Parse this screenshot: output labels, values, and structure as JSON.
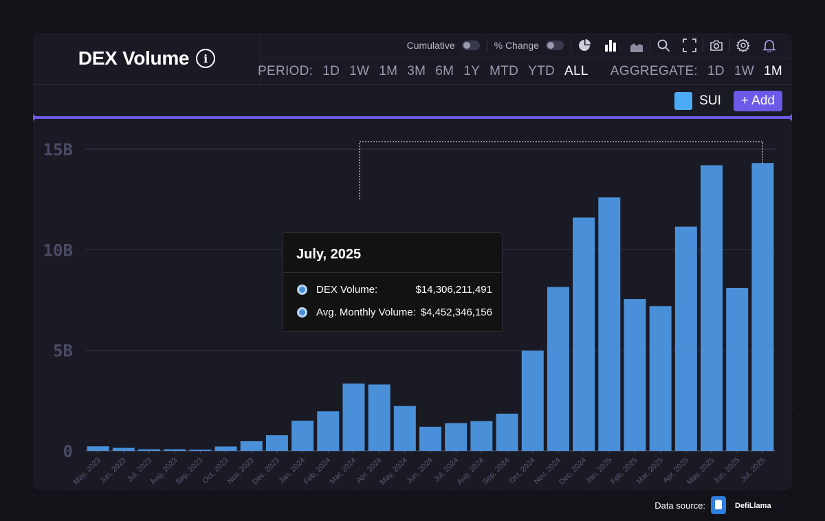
{
  "header": {
    "title": "DEX Volume",
    "toolbar": {
      "cumulative_label": "Cumulative",
      "pct_change_label": "% Change",
      "icons": [
        "pie-chart-icon",
        "bar-chart-icon",
        "area-chart-icon",
        "search-icon",
        "fullscreen-icon",
        "camera-icon",
        "gear-icon",
        "bell-icon"
      ]
    },
    "period": {
      "label": "PERIOD:",
      "options": [
        "1D",
        "1W",
        "1M",
        "3M",
        "6M",
        "1Y",
        "MTD",
        "YTD",
        "ALL"
      ],
      "active": "ALL"
    },
    "aggregate": {
      "label": "AGGREGATE:",
      "options": [
        "1D",
        "1W",
        "1M"
      ],
      "active": "1M"
    }
  },
  "legend": {
    "label": "SUI",
    "color": "#4dabf5",
    "add_label": "+ Add"
  },
  "tooltip": {
    "title": "July, 2025",
    "rows": [
      {
        "label": "DEX Volume:",
        "value": "$14,306,211,491"
      },
      {
        "label": "Avg. Monthly Volume:",
        "value": "$4,452,346,156"
      }
    ]
  },
  "source": {
    "label": "Data source:",
    "brand": "DefiLlama"
  },
  "chart_data": {
    "type": "bar",
    "title": "DEX Volume",
    "categories": [
      "May, 2023",
      "Jun, 2023",
      "Jul, 2023",
      "Aug, 2023",
      "Sep, 2023",
      "Oct, 2023",
      "Nov, 2023",
      "Dec, 2023",
      "Jan, 2024",
      "Feb, 2024",
      "Mar, 2024",
      "Apr, 2024",
      "May, 2024",
      "Jun, 2024",
      "Jul, 2024",
      "Aug, 2024",
      "Sep, 2024",
      "Oct, 2024",
      "Nov, 2024",
      "Dec, 2024",
      "Jan, 2025",
      "Feb, 2025",
      "Mar, 2025",
      "Apr, 2025",
      "May, 2025",
      "Jun, 2025",
      "Jul, 2025"
    ],
    "series": [
      {
        "name": "SUI",
        "values": [
          0.23,
          0.15,
          0.08,
          0.08,
          0.06,
          0.22,
          0.48,
          0.78,
          1.5,
          1.97,
          3.35,
          3.3,
          2.23,
          1.2,
          1.38,
          1.48,
          1.85,
          4.98,
          8.15,
          11.6,
          12.6,
          7.55,
          7.2,
          11.15,
          14.2,
          8.1,
          14.31
        ]
      }
    ],
    "y_ticks": [
      "0",
      "5B",
      "10B",
      "15B"
    ],
    "y_tick_values": [
      0,
      5,
      10,
      15
    ],
    "ylim": [
      0,
      15
    ],
    "xlabel": "",
    "ylabel": "",
    "grid": true,
    "bar_color": "#4a90d9",
    "highlighted_category": "Jul, 2025"
  }
}
